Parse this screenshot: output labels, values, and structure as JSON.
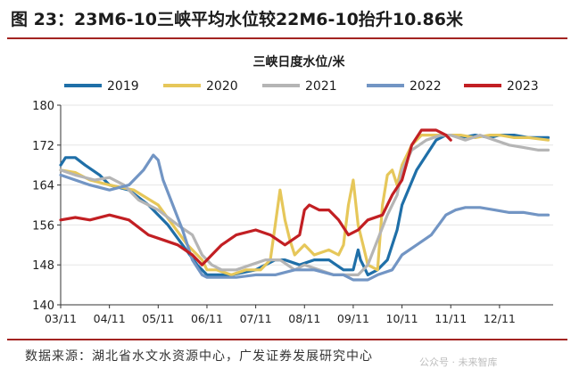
{
  "figure": {
    "title": "图  23：23M6-10三峡平均水位较22M6-10抬升10.86米",
    "source": "数据来源：湖北省水文水资源中心，广发证券发展研究中心",
    "watermark": "公众号 · 未来智库"
  },
  "chart_data": {
    "type": "line",
    "title": "三峡日度水位/米",
    "xlabel": "",
    "ylabel": "",
    "categories": [
      "03/11",
      "04/11",
      "05/11",
      "06/11",
      "07/11",
      "08/11",
      "09/11",
      "10/11",
      "11/11",
      "12/11"
    ],
    "yticks": [
      140,
      148,
      156,
      164,
      172,
      180
    ],
    "ylim": [
      140,
      180
    ],
    "xlim": [
      0,
      10.1
    ],
    "legend_position": "top",
    "series": [
      {
        "name": "2019",
        "color": "#1f6fa8",
        "x": [
          0,
          0.1,
          0.3,
          0.5,
          0.8,
          1.0,
          1.4,
          1.8,
          2.2,
          2.5,
          2.8,
          3.0,
          3.2,
          3.5,
          4.0,
          4.2,
          4.4,
          4.6,
          4.9,
          5.2,
          5.5,
          5.8,
          6.0,
          6.1,
          6.15,
          6.2,
          6.3,
          6.5,
          6.7,
          6.9,
          7.0,
          7.3,
          7.5,
          7.7,
          7.9,
          8.0,
          8.2,
          8.5,
          8.8,
          9.0,
          9.3,
          9.6,
          10.0
        ],
        "y": [
          168,
          169.5,
          169.5,
          168,
          166,
          164,
          163,
          160,
          156,
          152,
          148,
          146,
          146,
          146,
          147,
          148,
          149,
          149,
          148,
          149,
          149,
          147,
          147,
          151,
          149,
          148,
          146,
          147,
          149,
          155,
          160,
          167,
          170,
          173,
          174,
          174,
          173.5,
          174,
          173.5,
          174,
          174,
          173.5,
          173.5
        ]
      },
      {
        "name": "2020",
        "color": "#e6c75a",
        "x": [
          0,
          0.3,
          0.6,
          1.0,
          1.5,
          2.0,
          2.3,
          2.6,
          2.9,
          3.0,
          3.2,
          3.5,
          3.8,
          4.1,
          4.3,
          4.4,
          4.5,
          4.6,
          4.7,
          4.8,
          5.0,
          5.2,
          5.5,
          5.7,
          5.8,
          5.9,
          6.0,
          6.1,
          6.2,
          6.3,
          6.5,
          6.6,
          6.7,
          6.8,
          6.9,
          7.0,
          7.2,
          7.4,
          7.7,
          8.0,
          8.2,
          8.5,
          8.8,
          9.0,
          9.3,
          9.6,
          10.0
        ],
        "y": [
          167,
          166.5,
          165,
          164,
          163,
          160,
          156,
          152,
          149,
          147,
          147,
          146,
          147,
          147,
          149,
          156,
          163,
          157,
          153,
          150,
          152,
          150,
          151,
          150,
          152,
          160,
          165,
          156,
          152,
          148,
          147,
          160,
          166,
          167,
          164,
          168,
          172,
          174,
          174,
          174,
          174,
          173.5,
          174,
          174,
          173.5,
          173.5,
          173
        ]
      },
      {
        "name": "2021",
        "color": "#b5b5b5",
        "x": [
          0,
          0.3,
          0.7,
          1.0,
          1.3,
          1.6,
          2.0,
          2.4,
          2.7,
          2.9,
          3.1,
          3.3,
          3.6,
          3.9,
          4.2,
          4.5,
          4.8,
          5.0,
          5.3,
          5.6,
          5.9,
          6.1,
          6.3,
          6.5,
          6.7,
          6.9,
          7.0,
          7.2,
          7.5,
          7.8,
          8.0,
          8.3,
          8.6,
          8.9,
          9.2,
          9.5,
          9.8,
          10.0
        ],
        "y": [
          167,
          166,
          165,
          165.5,
          164,
          161,
          159,
          156,
          154,
          150,
          148,
          147,
          147,
          148,
          149,
          149,
          147,
          148,
          147,
          146,
          146,
          146,
          148,
          153,
          158,
          162,
          167,
          171,
          173,
          174,
          174,
          173,
          174,
          173,
          172,
          171.5,
          171,
          171
        ]
      },
      {
        "name": "2022",
        "color": "#7295c4",
        "x": [
          0,
          0.3,
          0.6,
          1.0,
          1.4,
          1.7,
          1.9,
          2.0,
          2.1,
          2.3,
          2.5,
          2.7,
          2.9,
          3.0,
          3.3,
          3.6,
          4.0,
          4.4,
          4.8,
          5.2,
          5.6,
          5.8,
          6.0,
          6.3,
          6.5,
          6.8,
          7.0,
          7.3,
          7.6,
          7.9,
          8.1,
          8.3,
          8.6,
          8.9,
          9.2,
          9.5,
          9.8,
          10.0
        ],
        "y": [
          166,
          165,
          164,
          163,
          164,
          167,
          170,
          169,
          165,
          160,
          155,
          149,
          146,
          145.5,
          145.5,
          145.5,
          146,
          146,
          147,
          147,
          146,
          146,
          145,
          145,
          146,
          147,
          150,
          152,
          154,
          158,
          159,
          159.5,
          159.5,
          159,
          158.5,
          158.5,
          158,
          158
        ]
      },
      {
        "name": "2023",
        "color": "#c21f23",
        "x": [
          0,
          0.3,
          0.6,
          1.0,
          1.4,
          1.8,
          2.1,
          2.4,
          2.7,
          2.9,
          3.0,
          3.1,
          3.3,
          3.6,
          4.0,
          4.3,
          4.6,
          4.9,
          5.0,
          5.1,
          5.3,
          5.5,
          5.7,
          5.9,
          6.1,
          6.3,
          6.6,
          6.8,
          7.0,
          7.2,
          7.4,
          7.7,
          7.9,
          8.0
        ],
        "y": [
          157,
          157.5,
          157,
          158,
          157,
          154,
          153,
          152,
          150,
          148,
          149,
          150,
          152,
          154,
          155,
          154,
          152,
          154,
          159,
          160,
          159,
          159,
          157,
          154,
          155,
          157,
          158,
          162,
          165,
          172,
          175,
          175,
          174,
          173
        ]
      }
    ]
  }
}
